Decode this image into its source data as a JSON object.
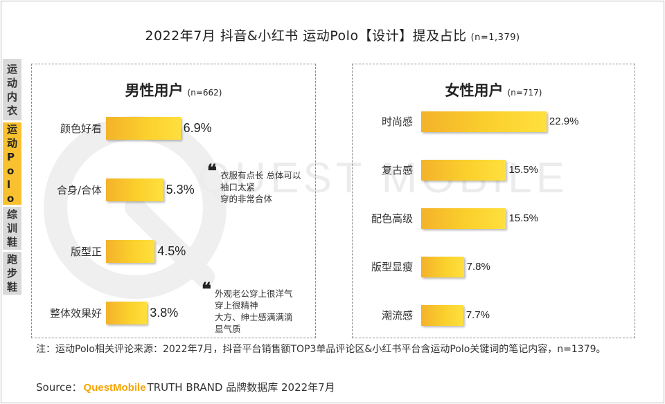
{
  "title": "2022年7月 抖音&小红书 运动Polo【设计】提及占比",
  "title_n": "(n=1,379)",
  "side_tabs": [
    {
      "label": "运动内衣",
      "active": false
    },
    {
      "label": "运动Polo",
      "active": true
    },
    {
      "label": "综训鞋",
      "active": false
    },
    {
      "label": "跑步鞋",
      "active": false
    }
  ],
  "watermark": "QUEST MOBILE",
  "chart_data": [
    {
      "type": "bar",
      "title": "男性用户",
      "n_label": "(n=662)",
      "categories": [
        "颜色好看",
        "合身/合体",
        "版型正",
        "整体效果好"
      ],
      "values": [
        6.9,
        5.3,
        4.5,
        3.8
      ],
      "value_labels": [
        "6.9%",
        "5.3%",
        "4.5%",
        "3.8%"
      ],
      "unit": "%",
      "orientation": "horizontal",
      "quotes": [
        [
          "衣服有点长 总体可以",
          "袖口太紧",
          "穿的非常合体"
        ],
        [
          "外观老公穿上很洋气",
          "穿上很精神",
          "大方、绅士感满满滴",
          "显气质"
        ]
      ]
    },
    {
      "type": "bar",
      "title": "女性用户",
      "n_label": "(n=717)",
      "categories": [
        "时尚感",
        "复古感",
        "配色高级",
        "版型显瘦",
        "潮流感"
      ],
      "values": [
        22.9,
        15.5,
        15.5,
        7.8,
        7.7
      ],
      "value_labels": [
        "22.9%",
        "15.5%",
        "15.5%",
        "7.8%",
        "7.7%"
      ],
      "unit": "%",
      "orientation": "horizontal"
    }
  ],
  "note": "注：运动Polo相关评论来源：2022年7月，抖音平台销售额TOP3单品评论区&小红书平台含运动Polo关键词的笔记内容，n=1379。",
  "source": {
    "prefix": "Source：",
    "brand": "QuestMobile",
    "suffix": "TRUTH BRAND 品牌数据库 2022年7月"
  },
  "colors": {
    "bar_start": "#f3b22b",
    "bar_end": "#ffe03e",
    "active_tab": "#f9c12f",
    "inactive_tab": "#d9d9d9",
    "brand": "#f7a400"
  }
}
